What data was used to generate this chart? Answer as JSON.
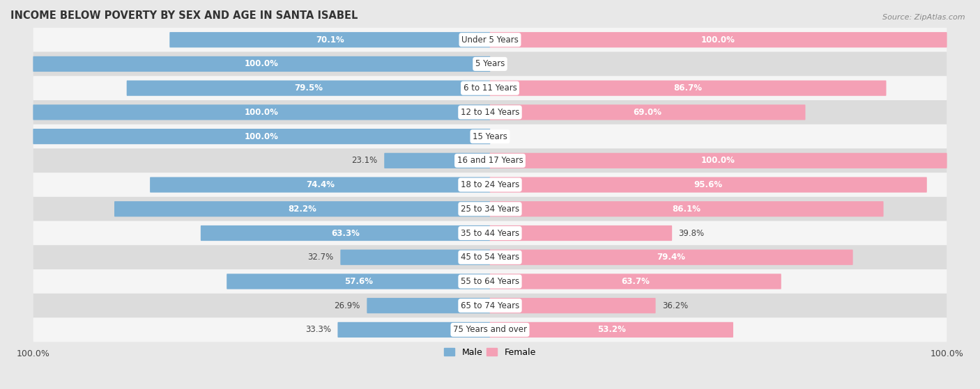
{
  "title": "INCOME BELOW POVERTY BY SEX AND AGE IN SANTA ISABEL",
  "source": "Source: ZipAtlas.com",
  "categories": [
    "Under 5 Years",
    "5 Years",
    "6 to 11 Years",
    "12 to 14 Years",
    "15 Years",
    "16 and 17 Years",
    "18 to 24 Years",
    "25 to 34 Years",
    "35 to 44 Years",
    "45 to 54 Years",
    "55 to 64 Years",
    "65 to 74 Years",
    "75 Years and over"
  ],
  "male_values": [
    70.1,
    100.0,
    79.5,
    100.0,
    100.0,
    23.1,
    74.4,
    82.2,
    63.3,
    32.7,
    57.6,
    26.9,
    33.3
  ],
  "female_values": [
    100.0,
    0.0,
    86.7,
    69.0,
    0.0,
    100.0,
    95.6,
    86.1,
    39.8,
    79.4,
    63.7,
    36.2,
    53.2
  ],
  "male_color": "#7bafd4",
  "female_color": "#f4a0b5",
  "male_label": "Male",
  "female_label": "Female",
  "axis_max": 100.0,
  "bg_color": "#e8e8e8",
  "bar_bg_color": "#f5f5f5",
  "row_alt_color": "#dcdcdc",
  "label_fontsize": 8.5,
  "title_fontsize": 10.5,
  "source_fontsize": 8
}
